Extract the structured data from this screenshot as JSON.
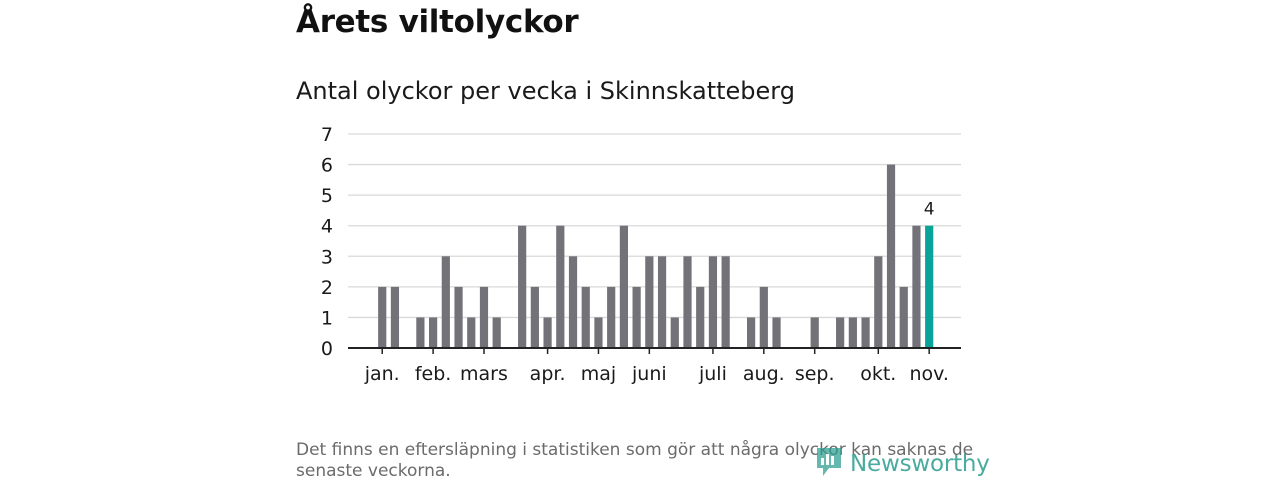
{
  "header": {
    "title": "Årets viltolyckor",
    "subtitle": "Antal olyckor per vecka i Skinnskatteberg"
  },
  "footer": {
    "note": "Det finns en eftersläpning i statistiken som gör att några olyckor kan saknas de senaste veckorna.",
    "brand": "Newsworthy"
  },
  "colors": {
    "bar": "#737278",
    "highlight": "#0aa39a",
    "grid": "#d9d9d9",
    "axis": "#222222",
    "brand": "#2a9d8f"
  },
  "chart_data": {
    "type": "bar",
    "title": "Antal olyckor per vecka i Skinnskatteberg",
    "xlabel": "",
    "ylabel": "",
    "ylim": [
      0,
      7
    ],
    "yticks": [
      0,
      1,
      2,
      3,
      4,
      5,
      6,
      7
    ],
    "grid": true,
    "x": [
      1,
      2,
      3,
      4,
      5,
      6,
      7,
      8,
      9,
      10,
      11,
      12,
      13,
      14,
      15,
      16,
      17,
      18,
      19,
      20,
      21,
      22,
      23,
      24,
      25,
      26,
      27,
      28,
      29,
      30,
      31,
      32,
      33,
      34,
      35,
      36,
      37,
      38,
      39,
      40,
      41,
      42,
      43,
      44,
      45,
      46
    ],
    "values": [
      0,
      2,
      2,
      0,
      1,
      1,
      3,
      2,
      1,
      2,
      1,
      0,
      4,
      2,
      1,
      4,
      3,
      2,
      1,
      2,
      4,
      2,
      3,
      3,
      1,
      3,
      2,
      3,
      3,
      0,
      1,
      2,
      1,
      0,
      0,
      1,
      0,
      1,
      1,
      1,
      3,
      6,
      2,
      4,
      4,
      0
    ],
    "highlight_index": 44,
    "highlight_label": "4",
    "month_labels": [
      {
        "label": "jan.",
        "x": 2
      },
      {
        "label": "feb.",
        "x": 6
      },
      {
        "label": "mars",
        "x": 10
      },
      {
        "label": "apr.",
        "x": 15
      },
      {
        "label": "maj",
        "x": 19
      },
      {
        "label": "juni",
        "x": 23
      },
      {
        "label": "juli",
        "x": 28
      },
      {
        "label": "aug.",
        "x": 32
      },
      {
        "label": "sep.",
        "x": 36
      },
      {
        "label": "okt.",
        "x": 41
      },
      {
        "label": "nov.",
        "x": 45
      }
    ]
  }
}
